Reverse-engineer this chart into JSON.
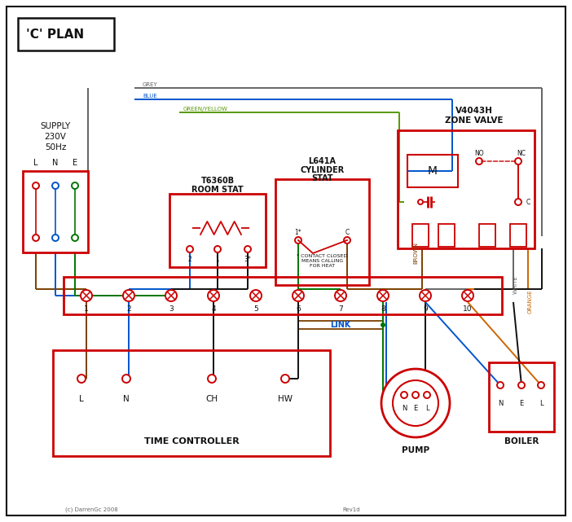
{
  "bg_color": "#ffffff",
  "red": "#cc0000",
  "blue": "#0055cc",
  "green": "#007700",
  "brown": "#7B3F00",
  "grey": "#666666",
  "orange": "#CC6600",
  "black": "#111111",
  "green_yellow": "#559900",
  "title": "'C' PLAN",
  "copyright": "(c) DarrenGc 2008",
  "rev": "Rev1d"
}
